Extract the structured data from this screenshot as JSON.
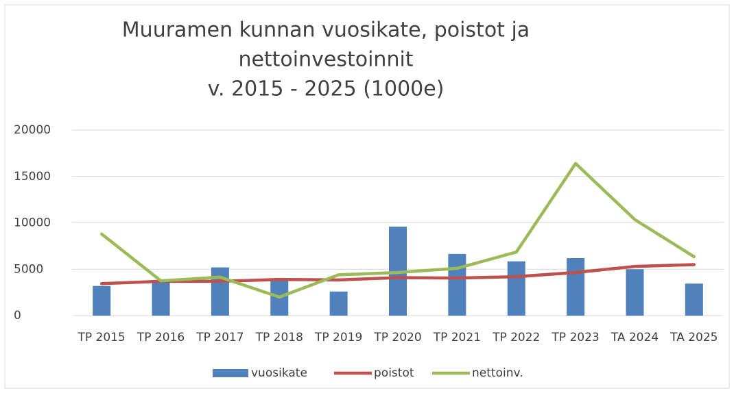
{
  "chart_data": {
    "type": "combo",
    "title": [
      "Muuramen kunnan vuosikate, poistot ja",
      "nettoinvestoinnit",
      "v. 2015 - 2025 (1000e)"
    ],
    "categories": [
      "TP 2015",
      "TP 2016",
      "TP 2017",
      "TP 2018",
      "TP 2019",
      "TP 2020",
      "TP 2021",
      "TP 2022",
      "TP 2023",
      "TA 2024",
      "TA 2025"
    ],
    "series": [
      {
        "name": "vuosikate",
        "type": "bar",
        "color": "#4f81bd",
        "values": [
          3200,
          3800,
          5200,
          3900,
          2600,
          9600,
          6650,
          5850,
          6200,
          5000,
          3450
        ]
      },
      {
        "name": "poistot",
        "type": "line",
        "color": "#c0504d",
        "values": [
          3450,
          3700,
          3700,
          3900,
          3850,
          4100,
          4050,
          4200,
          4650,
          5300,
          5500
        ]
      },
      {
        "name": "nettoinv.",
        "type": "line",
        "color": "#9bbb59",
        "values": [
          8800,
          3750,
          4150,
          2000,
          4400,
          4650,
          5100,
          6850,
          16400,
          10350,
          6350
        ]
      }
    ],
    "ylim": [
      0,
      20000
    ],
    "yticks": [
      0,
      5000,
      10000,
      15000,
      20000
    ],
    "grid": true,
    "legend": "bottom"
  }
}
